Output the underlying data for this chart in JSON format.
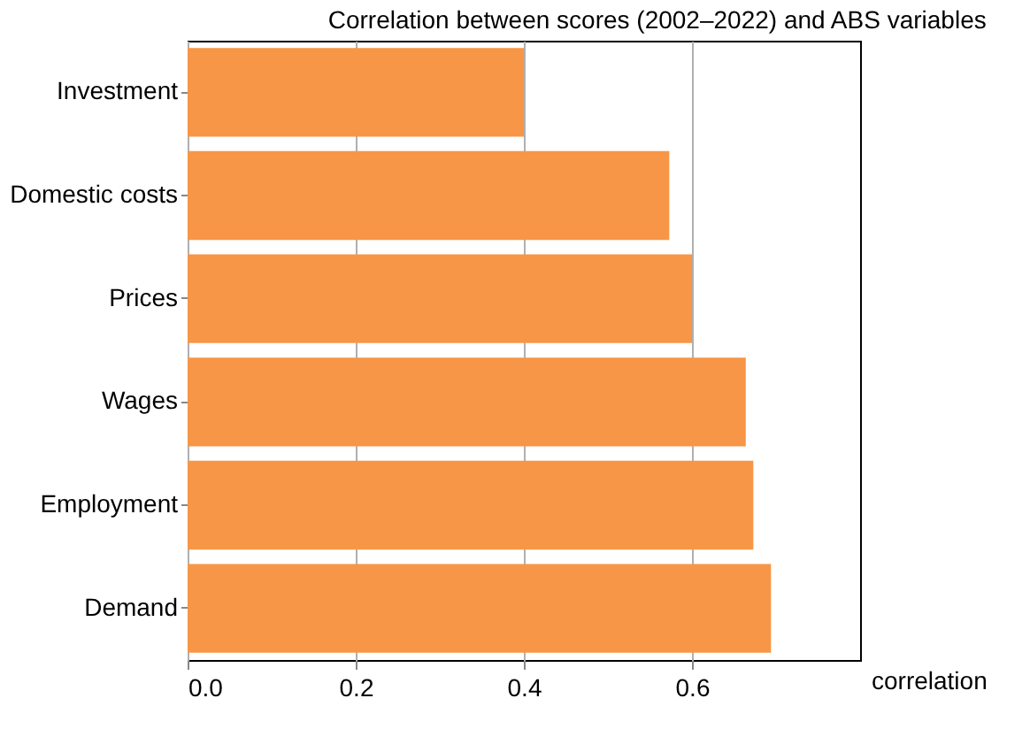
{
  "chart_data": {
    "type": "bar",
    "orientation": "horizontal",
    "title": "Correlation between scores (2002–2022) and ABS variables",
    "xlabel": "correlation",
    "categories": [
      "Investment",
      "Domestic costs",
      "Prices",
      "Wages",
      "Employment",
      "Demand"
    ],
    "values": [
      0.4,
      0.573,
      0.6,
      0.664,
      0.673,
      0.694
    ],
    "color": "#f79646",
    "xlim": [
      0,
      0.8
    ],
    "xticks": [
      {
        "value": 0,
        "label": "0.0"
      },
      0.2,
      0.4,
      0.6
    ],
    "grid": "x"
  }
}
